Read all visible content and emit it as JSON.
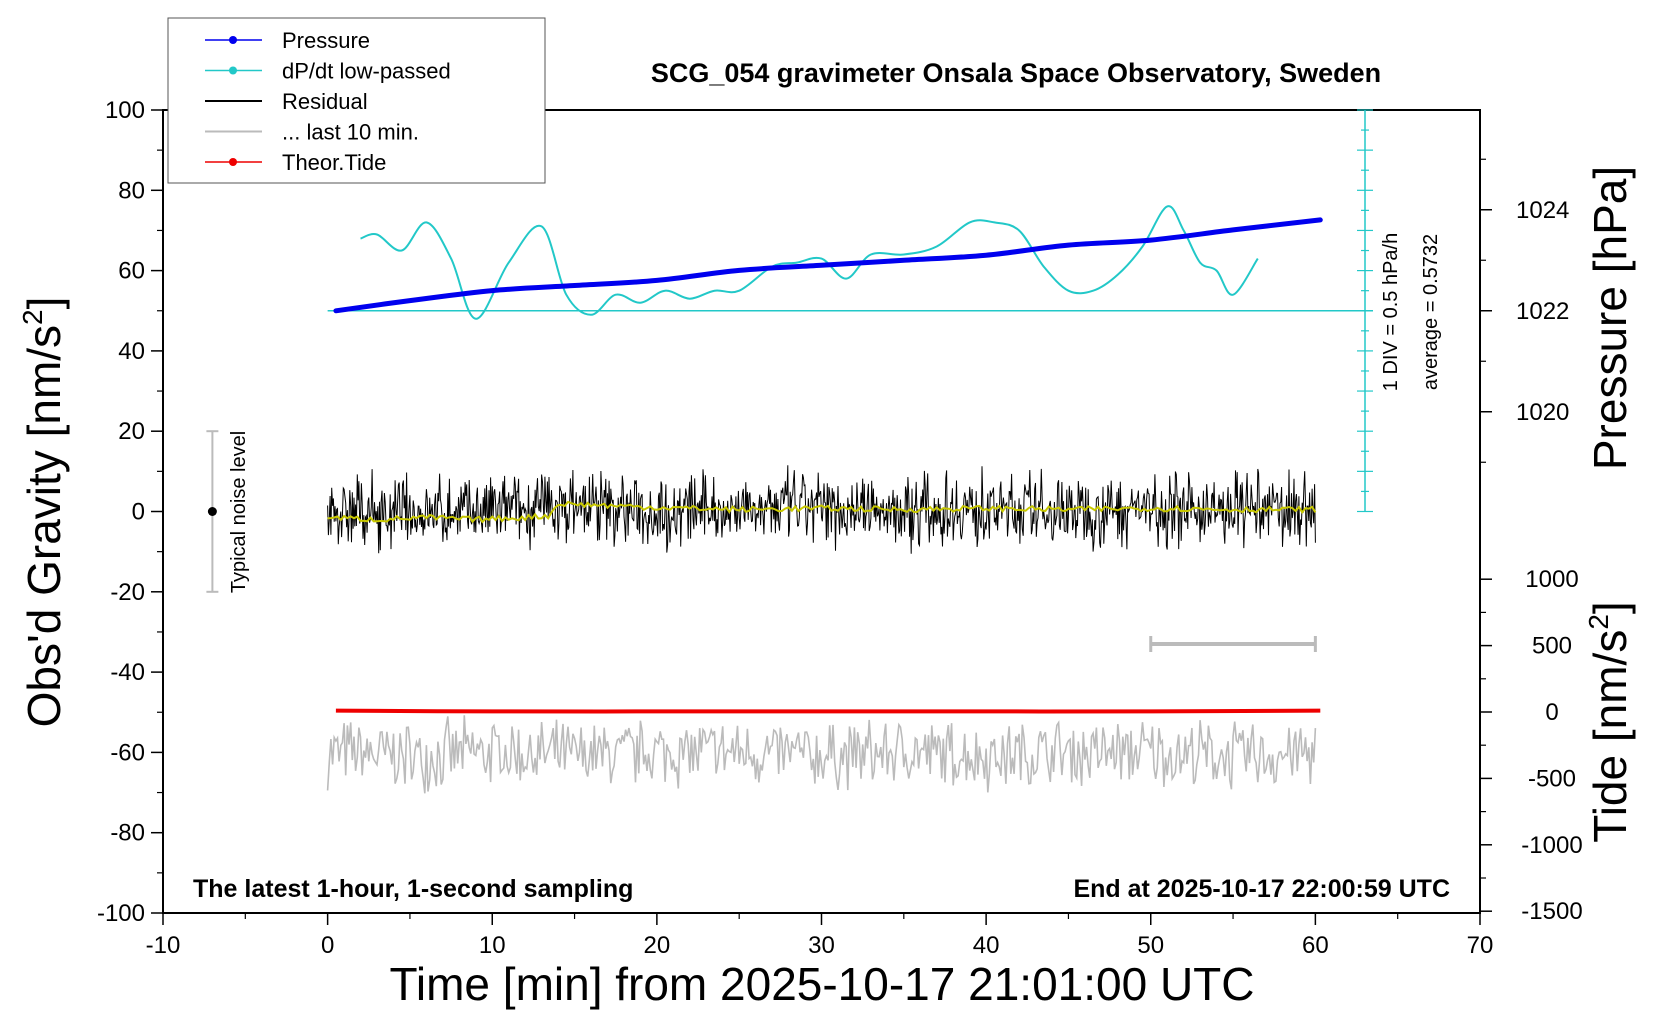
{
  "chart_data": {
    "type": "line",
    "title": "SCG_054 gravimeter Onsala Space Observatory, Sweden",
    "xlabel": "Time [min] from 2025-10-17 21:01:00 UTC",
    "ylabel_left_main": "Obs'd Gravity [nm/s",
    "ylabel_left_sup": "2",
    "ylabel_left_end": "]",
    "ylabel_right_top": "Pressure [hPa]",
    "ylabel_right_bottom_main": "Tide [nm/s",
    "ylabel_right_bottom_sup": "2",
    "ylabel_right_bottom_end": "]",
    "xlim": [
      -10,
      70
    ],
    "ylim": [
      -100,
      100
    ],
    "x_ticks": [
      "-10",
      "0",
      "10",
      "20",
      "30",
      "40",
      "50",
      "60",
      "70"
    ],
    "y_ticks": [
      "100",
      "80",
      "60",
      "40",
      "20",
      "0",
      "-20",
      "-40",
      "-60",
      "-80",
      "-100"
    ],
    "pressure_axis": {
      "ticks": [
        "1024",
        "1022",
        "1020"
      ],
      "tick_values": [
        1024,
        1022,
        1020
      ]
    },
    "tide_axis": {
      "ticks": [
        "1000",
        "500",
        "0",
        "-500",
        "-1000",
        "-1500"
      ],
      "tick_values": [
        1000,
        500,
        0,
        -500,
        -1000,
        -1500
      ]
    },
    "annotation_left": "The latest 1-hour, 1-second sampling",
    "annotation_right": "End at 2025-10-17 22:00:59 UTC",
    "dpdt_scale_label": "1 DIV = 0.5 hPa/h",
    "dpdt_average_label": "average = 0.5732",
    "noise_label": "Typical noise level",
    "noise_bar": {
      "x": -7,
      "center": 0,
      "half_range": 20
    },
    "last10_bar": {
      "x_start": 50,
      "x_end": 60,
      "y": -33
    },
    "legend": [
      {
        "label": "Pressure",
        "color": "#0000ee",
        "style": "line-dot"
      },
      {
        "label": "dP/dt low-passed",
        "color": "#22c8c8",
        "style": "line-dot"
      },
      {
        "label": "Residual",
        "color": "#000000",
        "style": "line"
      },
      {
        "label": "... last 10 min.",
        "color": "#bbbbbb",
        "style": "line"
      },
      {
        "label": "Theor.Tide",
        "color": "#ee0000",
        "style": "line-dot"
      }
    ],
    "series": [
      {
        "name": "Pressure",
        "units": "hPa",
        "color": "#0000ee",
        "x": [
          0.5,
          5,
          10,
          15,
          20,
          25,
          30,
          35,
          40,
          45,
          50,
          55,
          60.3
        ],
        "values": [
          1022.0,
          1022.2,
          1022.4,
          1022.5,
          1022.6,
          1022.8,
          1022.9,
          1023.0,
          1023.1,
          1023.3,
          1023.4,
          1023.6,
          1023.8
        ]
      },
      {
        "name": "dP/dt low-passed",
        "units": "gravity-axis position (baseline 50 = average)",
        "color": "#22c8c8",
        "x": [
          2,
          3,
          4.5,
          6,
          7.5,
          9,
          11,
          13,
          14.5,
          16,
          17.5,
          19,
          20.5,
          22,
          23.5,
          25,
          27,
          28.5,
          30,
          31.5,
          33,
          35,
          37,
          39,
          40.5,
          42,
          43.5,
          45,
          46.5,
          48,
          49.5,
          51,
          52,
          53,
          54,
          55,
          56.5
        ],
        "values": [
          68,
          69,
          65,
          72,
          63,
          48,
          62,
          71,
          54,
          49,
          54,
          52,
          55,
          53,
          55,
          55,
          61,
          62,
          63,
          58,
          64,
          64,
          66,
          72,
          72,
          70,
          61,
          55,
          55,
          59,
          66,
          76,
          70,
          62,
          60,
          54,
          63
        ]
      },
      {
        "name": "Residual",
        "units": "nm/s2",
        "color": "#000000",
        "x": [
          0,
          5,
          10,
          15,
          20,
          25,
          30,
          35,
          40,
          45,
          50,
          55,
          60
        ],
        "values": [
          0,
          -1,
          0,
          1,
          0,
          1,
          1,
          0,
          1,
          0,
          1,
          0,
          1
        ],
        "amplitude": 9
      },
      {
        "name": "Residual low-passed",
        "units": "nm/s2",
        "color": "#c8c800",
        "x": [
          0,
          3,
          6,
          9,
          12,
          13.5,
          14,
          20,
          25,
          30,
          35,
          40,
          45,
          50,
          55,
          60
        ],
        "values": [
          -1.5,
          -2,
          -1.5,
          -2,
          -1.5,
          -1,
          2,
          1,
          0.5,
          0.8,
          0.5,
          0.8,
          0.5,
          0.8,
          0.5,
          0.5
        ]
      },
      {
        "name": "... last 10 min.",
        "units": "nm/s2",
        "color": "#bbbbbb",
        "x": [
          0,
          5,
          10,
          15,
          20,
          25,
          30,
          35,
          40,
          45,
          50,
          55,
          60
        ],
        "values": [
          -60,
          -61,
          -60,
          -61,
          -60,
          -60,
          -61,
          -60,
          -61,
          -60,
          -60,
          -61,
          -60
        ],
        "amplitude": 9
      },
      {
        "name": "Theor.Tide",
        "units": "nm/s2",
        "color": "#ee0000",
        "x": [
          0.5,
          10,
          20,
          30,
          40,
          50,
          60.3
        ],
        "values": [
          -49.6,
          -49.8,
          -49.8,
          -49.8,
          -49.8,
          -49.8,
          -49.6
        ]
      }
    ]
  }
}
